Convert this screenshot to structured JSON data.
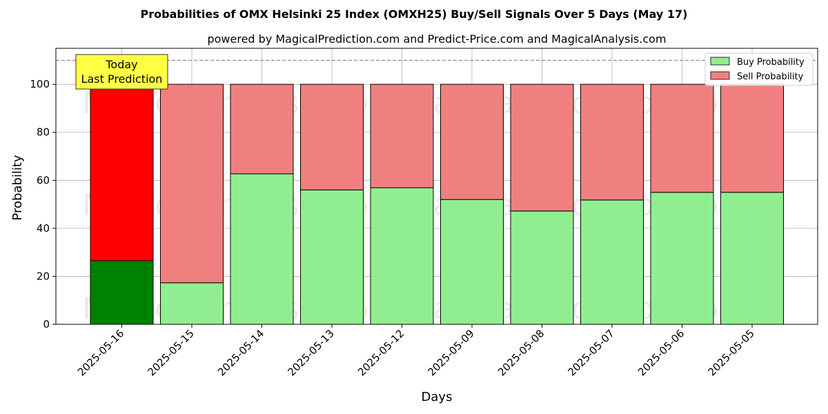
{
  "chart_data": {
    "type": "bar",
    "stacked": true,
    "title": "Probabilities of OMX Helsinki 25 Index (OMXH25) Buy/Sell Signals Over 5 Days (May 17)",
    "subtitle": "powered by MagicalPrediction.com and Predict-Price.com and MagicalAnalysis.com",
    "xlabel": "Days",
    "ylabel": "Probability",
    "ylim": [
      0,
      115
    ],
    "yticks": [
      0,
      20,
      40,
      60,
      80,
      100
    ],
    "grid": true,
    "reference_line": 110,
    "categories": [
      "2025-05-16",
      "2025-05-15",
      "2025-05-14",
      "2025-05-13",
      "2025-05-12",
      "2025-05-09",
      "2025-05-08",
      "2025-05-07",
      "2025-05-06",
      "2025-05-05"
    ],
    "series": [
      {
        "name": "Buy Probability",
        "values": [
          26.5,
          17.3,
          62.7,
          56.0,
          56.9,
          52.0,
          47.2,
          51.8,
          55.0,
          55.0
        ]
      },
      {
        "name": "Sell Probability",
        "values": [
          73.5,
          82.7,
          37.3,
          44.0,
          43.1,
          48.0,
          52.8,
          48.2,
          45.0,
          45.0
        ]
      }
    ],
    "legend": {
      "placement": "top-right",
      "entries": [
        "Buy Probability",
        "Sell Probability"
      ]
    },
    "annotation": {
      "lines": [
        "Today",
        "Last Prediction"
      ],
      "color": "#ffff44"
    },
    "colors": {
      "buy": "#90ee90",
      "sell": "#f08080",
      "buy_today": "#008000",
      "sell_today": "#ff0000"
    },
    "watermarks": [
      "MagicalAnalysis.com",
      "MagicalPrediction.com"
    ]
  }
}
